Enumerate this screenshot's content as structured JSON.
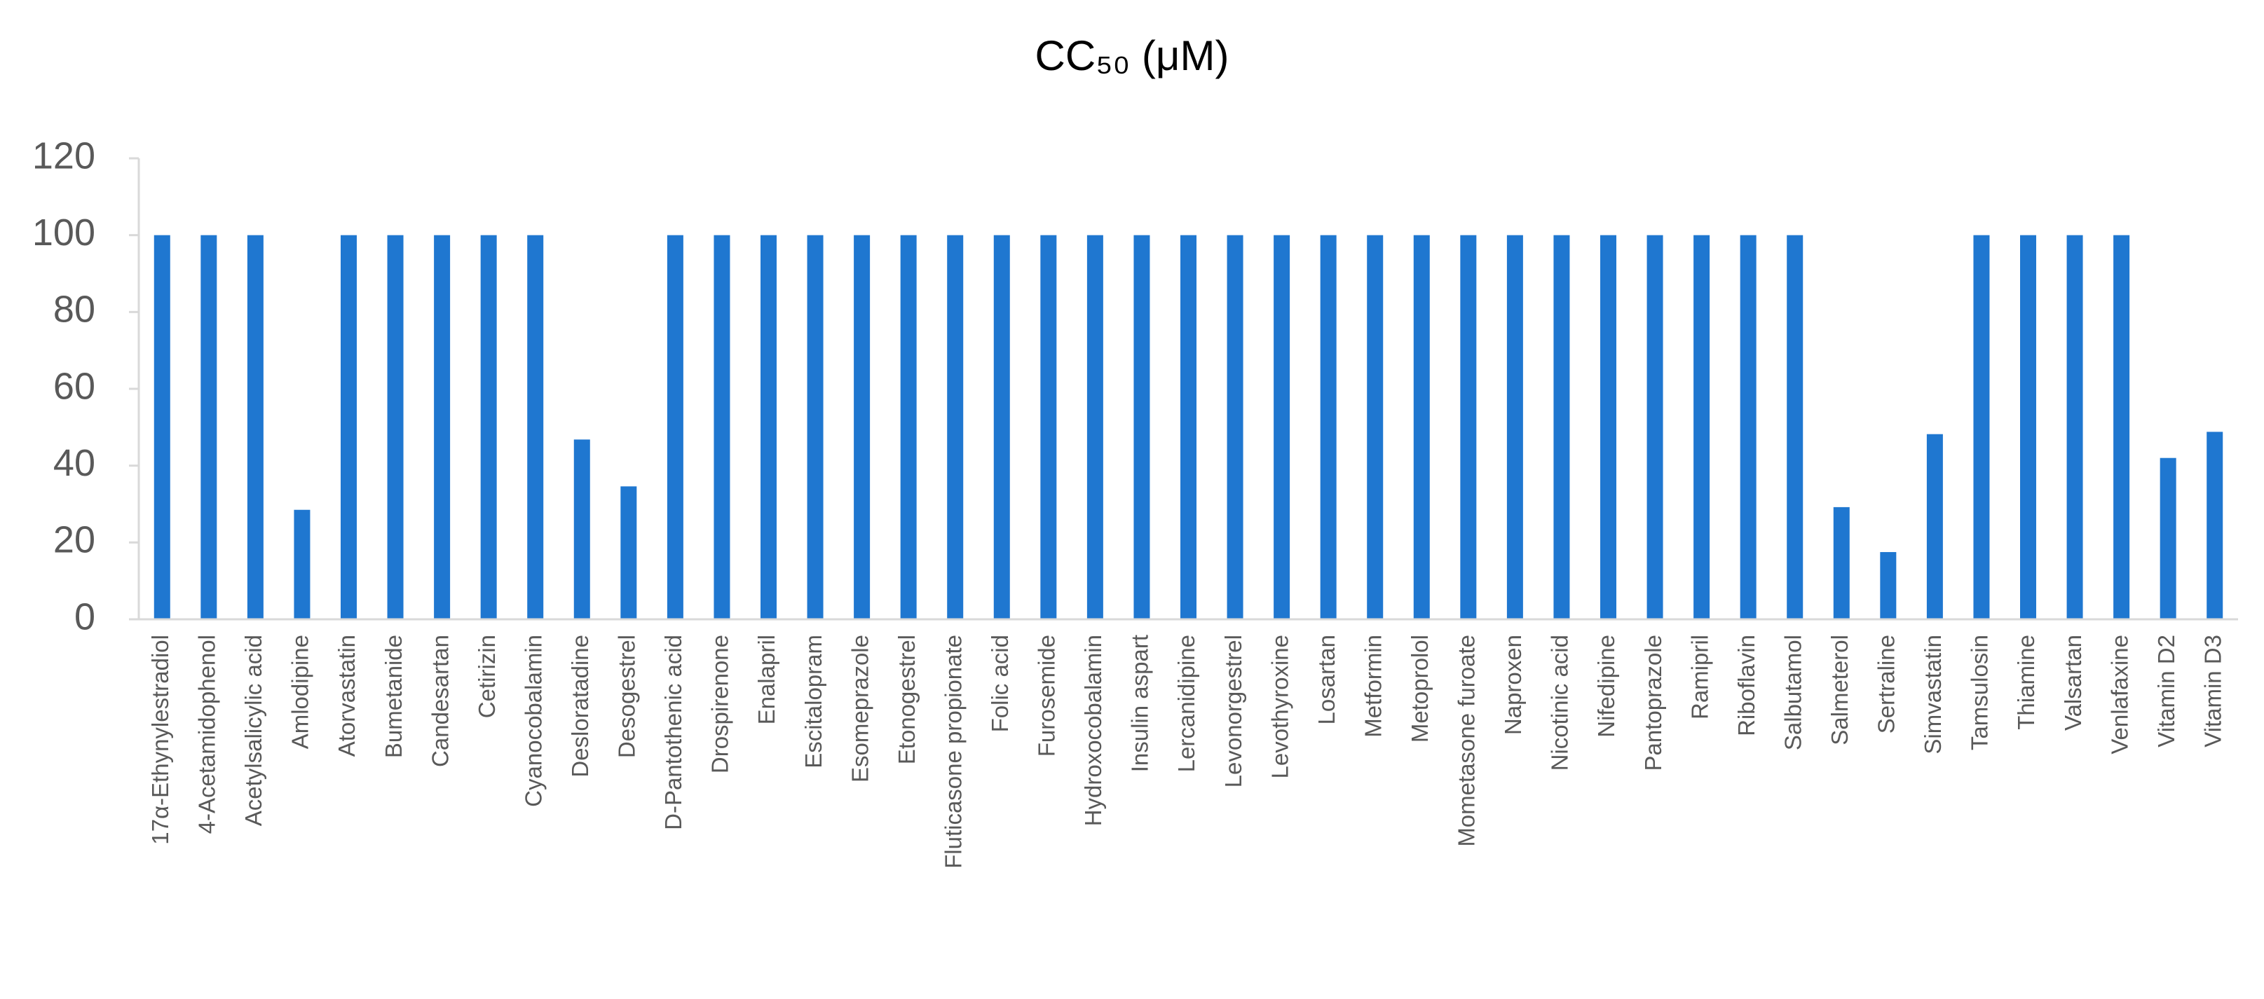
{
  "chart_data": {
    "type": "bar",
    "title": "CC₅₀ (μM)",
    "categories": [
      "17α-Ethynylestradiol",
      "4-Acetamidophenol",
      "Acetylsalicylic acid",
      "Amlodipine",
      "Atorvastatin",
      "Bumetanide",
      "Candesartan",
      "Cetirizin",
      "Cyanocobalamin",
      "Desloratadine",
      "Desogestrel",
      "D-Pantothenic acid",
      "Drospirenone",
      "Enalapril",
      "Escitalopram",
      "Esomeprazole",
      "Etonogestrel",
      "Fluticasone propionate",
      "Folic acid",
      "Furosemide",
      "Hydroxocobalamin",
      "Insulin aspart",
      "Lercanidipine",
      "Levonorgestrel",
      "Levothyroxine",
      "Losartan",
      "Metformin",
      "Metoprolol",
      "Mometasone furoate",
      "Naproxen",
      "Nicotinic acid",
      "Nifedipine",
      "Pantoprazole",
      "Ramipril",
      "Riboflavin",
      "Salbutamol",
      "Salmeterol",
      "Sertraline",
      "Simvastatin",
      "Tamsulosin",
      "Thiamine",
      "Valsartan",
      "Venlafaxine",
      "Vitamin D2",
      "Vitamin D3"
    ],
    "values": [
      100,
      100,
      100,
      28.5,
      100,
      100,
      100,
      100,
      100,
      46.8,
      34.6,
      100,
      100,
      100,
      100,
      100,
      100,
      100,
      100,
      100,
      100,
      100,
      100,
      100,
      100,
      100,
      100,
      100,
      100,
      100,
      100,
      100,
      100,
      100,
      100,
      100,
      29.2,
      17.5,
      48.2,
      100,
      100,
      100,
      100,
      42,
      48.8
    ],
    "color": "#1f77d0",
    "ylim": [
      0,
      120
    ],
    "yticks": [
      0,
      20,
      40,
      60,
      80,
      100,
      120
    ],
    "grid": false
  }
}
